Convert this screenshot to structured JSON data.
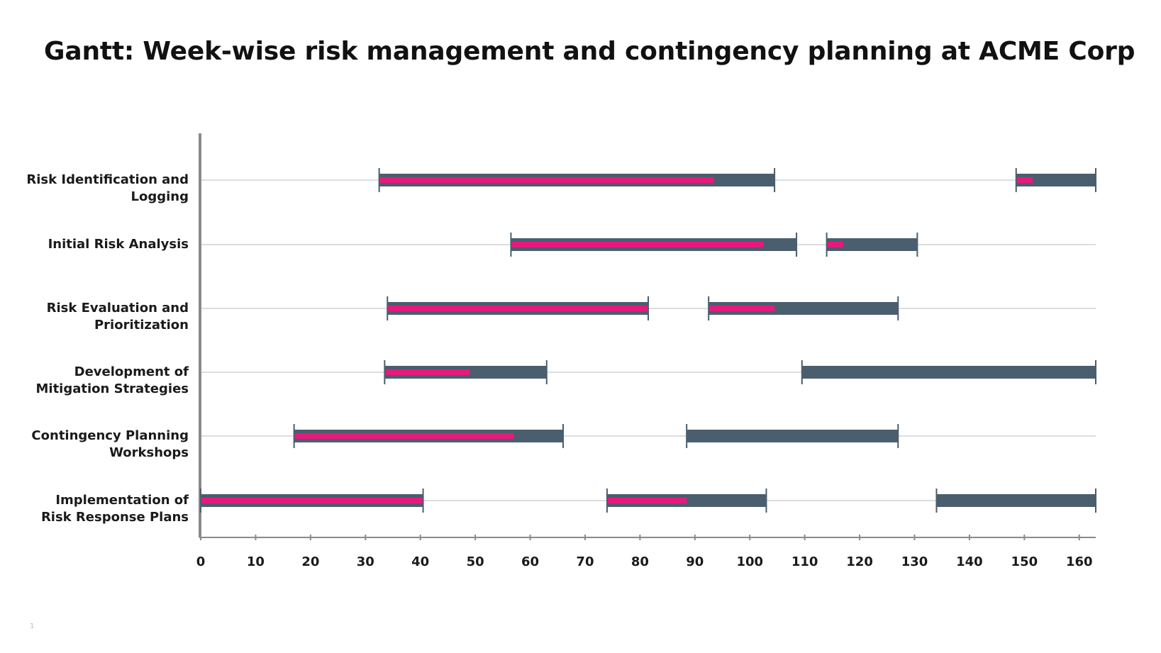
{
  "page_number": "1",
  "chart_data": {
    "type": "gantt",
    "title": "Gantt: Week-wise risk management and contingency planning at ACME Corp",
    "xlim": [
      0,
      163
    ],
    "xticks": [
      0,
      10,
      20,
      30,
      40,
      50,
      60,
      70,
      80,
      90,
      100,
      110,
      120,
      130,
      140,
      150,
      160
    ],
    "grid": "horizontal row lines",
    "colors": {
      "planned": "#4a5e6e",
      "progress": "#e8197d",
      "axis": "#8a8a8a",
      "row_line": "#cfd3d7"
    },
    "tasks": [
      {
        "label": "Risk Identification and Logging",
        "segments": [
          {
            "start": 32.5,
            "end": 104.5,
            "progress_end": 93.5
          },
          {
            "start": 148.5,
            "end": 163,
            "progress_end": 151.5
          }
        ]
      },
      {
        "label": "Initial Risk Analysis",
        "segments": [
          {
            "start": 56.5,
            "end": 108.5,
            "progress_end": 102.5
          },
          {
            "start": 114,
            "end": 130.5,
            "progress_end": 117
          }
        ]
      },
      {
        "label": "Risk Evaluation and Prioritization",
        "segments": [
          {
            "start": 34,
            "end": 81.5,
            "progress_end": 81.5
          },
          {
            "start": 92.5,
            "end": 127,
            "progress_end": 104.5
          }
        ]
      },
      {
        "label": "Development of Mitigation Strategies",
        "segments": [
          {
            "start": 33.5,
            "end": 63,
            "progress_end": 49
          },
          {
            "start": 109.5,
            "end": 163,
            "progress_end": null
          }
        ]
      },
      {
        "label": "Contingency Planning Workshops",
        "segments": [
          {
            "start": 17,
            "end": 66,
            "progress_end": 57
          },
          {
            "start": 88.5,
            "end": 127,
            "progress_end": null
          }
        ]
      },
      {
        "label": "Implementation of Risk Response Plans",
        "segments": [
          {
            "start": 0,
            "end": 40.5,
            "progress_end": 40.5
          },
          {
            "start": 74,
            "end": 103,
            "progress_end": 88.5
          },
          {
            "start": 134,
            "end": 163,
            "progress_end": null
          }
        ]
      }
    ]
  }
}
